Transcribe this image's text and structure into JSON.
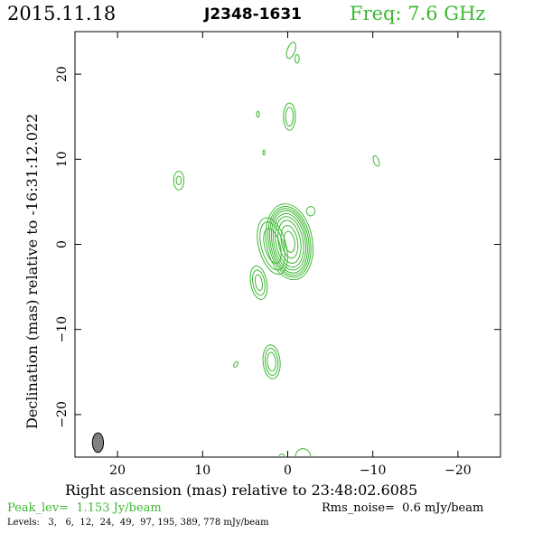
{
  "header": {
    "date": "2015.11.18",
    "source": "J2348-1631",
    "freq": "Freq: 7.6 GHz"
  },
  "footer": {
    "peak": "Peak_lev=  1.153 Jy/beam",
    "rms": "Rms_noise=  0.6 mJy/beam",
    "levels": "Levels:   3,   6,  12,  24,  49,  97, 195, 389, 778 mJy/beam"
  },
  "colors": {
    "contour": "#3cb832",
    "peak_text": "#3cb832",
    "freq_text": "#3cb832",
    "axis": "#000000",
    "beam": "#808080"
  },
  "chart_data": {
    "type": "contour",
    "xlabel": "Right ascension (mas) relative to 23:48:02.6085",
    "ylabel": "Declination (mas) relative to -16:31:12.022",
    "xlim": [
      25,
      -25
    ],
    "ylim": [
      -25,
      25
    ],
    "xticks": [
      20,
      10,
      0,
      -10,
      -20
    ],
    "yticks": [
      20,
      10,
      0,
      -10,
      -20
    ],
    "contour_levels_mJy": [
      3,
      6,
      12,
      24,
      49,
      97,
      195,
      389,
      778
    ],
    "components": [
      {
        "name": "core",
        "x": -0.2,
        "y": 0.3,
        "rings": [
          [
            2.7,
            4.5,
            -10
          ],
          [
            2.45,
            4.2,
            -10
          ],
          [
            2.25,
            3.95,
            -10
          ],
          [
            2.05,
            3.7,
            -10
          ],
          [
            1.85,
            3.35,
            -10
          ],
          [
            1.6,
            3.0,
            -10
          ],
          [
            1.3,
            2.55,
            -10
          ],
          [
            0.95,
            1.95,
            -10
          ],
          [
            0.6,
            1.25,
            -10
          ]
        ]
      },
      {
        "name": "core-ext-sw",
        "x": 1.8,
        "y": -0.2,
        "rings": [
          [
            1.6,
            3.4,
            -15
          ],
          [
            1.3,
            2.9,
            -15
          ],
          [
            0.9,
            2.1,
            -15
          ]
        ]
      },
      {
        "name": "sw-knot",
        "x": 3.4,
        "y": -4.5,
        "rings": [
          [
            0.95,
            2.0,
            -10
          ],
          [
            0.7,
            1.5,
            -10
          ],
          [
            0.4,
            0.95,
            -10
          ]
        ]
      },
      {
        "name": "s-knot",
        "x": 1.9,
        "y": -13.8,
        "rings": [
          [
            1.0,
            2.0,
            -5
          ],
          [
            0.75,
            1.6,
            -5
          ],
          [
            0.5,
            1.1,
            -5
          ]
        ]
      },
      {
        "name": "n-knot",
        "x": -0.2,
        "y": 15.0,
        "rings": [
          [
            0.7,
            1.6,
            0
          ],
          [
            0.45,
            1.1,
            0
          ]
        ]
      },
      {
        "name": "far-n",
        "x": -0.4,
        "y": 22.8,
        "rings": [
          [
            0.45,
            1.0,
            20
          ]
        ]
      },
      {
        "name": "far-n-tail",
        "x": -1.1,
        "y": 21.8,
        "rings": [
          [
            0.25,
            0.5,
            0
          ]
        ]
      },
      {
        "name": "e-blob",
        "x": 12.8,
        "y": 7.5,
        "rings": [
          [
            0.6,
            1.1,
            0
          ],
          [
            0.3,
            0.5,
            0
          ]
        ]
      },
      {
        "name": "w-blob",
        "x": -10.4,
        "y": 9.8,
        "rings": [
          [
            0.3,
            0.65,
            -20
          ]
        ]
      },
      {
        "name": "nw-small",
        "x": -2.7,
        "y": 3.9,
        "rings": [
          [
            0.5,
            0.55,
            0
          ]
        ]
      },
      {
        "name": "n-dot1",
        "x": 3.5,
        "y": 15.3,
        "rings": [
          [
            0.15,
            0.35,
            0
          ]
        ]
      },
      {
        "name": "n-dot2",
        "x": 2.8,
        "y": 10.8,
        "rings": [
          [
            0.12,
            0.3,
            0
          ]
        ]
      },
      {
        "name": "s-dot",
        "x": 6.1,
        "y": -14.1,
        "rings": [
          [
            0.2,
            0.35,
            30
          ]
        ]
      },
      {
        "name": "bottom-blob",
        "x": -1.8,
        "y": -25.0,
        "rings": [
          [
            0.9,
            1.0,
            0
          ]
        ]
      },
      {
        "name": "bottom-dot",
        "x": 0.7,
        "y": -25.0,
        "rings": [
          [
            0.35,
            0.35,
            0
          ]
        ]
      }
    ],
    "beam": {
      "x": 22.3,
      "y": -23.3,
      "major": 2.3,
      "minor": 1.3,
      "pa_deg": 0
    }
  }
}
